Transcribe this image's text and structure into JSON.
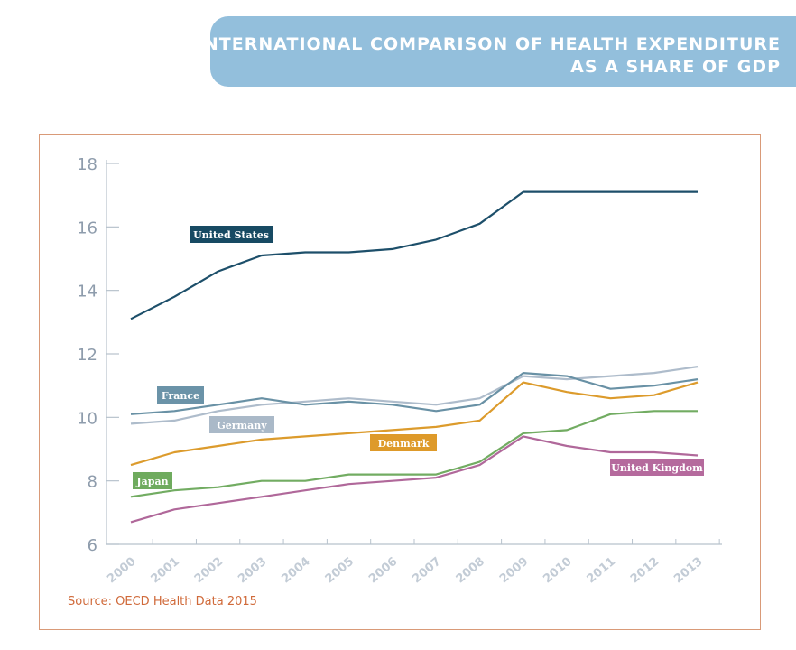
{
  "header": {
    "title_line1": "INTERNATIONAL COMPARISON OF HEALTH EXPENDITURE",
    "title_line2": "AS A SHARE OF GDP"
  },
  "source": "Source: OECD Health Data 2015",
  "chart_data": {
    "type": "line",
    "title": "INTERNATIONAL COMPARISON OF HEALTH EXPENDITURE AS A SHARE OF GDP",
    "x": [
      "2000",
      "2001",
      "2002",
      "2003",
      "2004",
      "2005",
      "2006",
      "2007",
      "2008",
      "2009",
      "2010",
      "2011",
      "2012",
      "2013"
    ],
    "ylim": [
      6,
      18
    ],
    "yticks": [
      6,
      8,
      10,
      12,
      14,
      16,
      18
    ],
    "grid": false,
    "series": [
      {
        "name": "United States",
        "color": "#1d4f6a",
        "label_color": "#174a63",
        "values": [
          13.1,
          13.8,
          14.6,
          15.1,
          15.2,
          15.2,
          15.3,
          15.6,
          16.1,
          17.1,
          17.1,
          17.1,
          17.1,
          17.1
        ]
      },
      {
        "name": "Germany",
        "color": "#aebccb",
        "label_color": "#aab9c8",
        "values": [
          9.8,
          9.9,
          10.2,
          10.4,
          10.5,
          10.6,
          10.5,
          10.4,
          10.6,
          11.3,
          11.2,
          11.3,
          11.4,
          11.6
        ]
      },
      {
        "name": "France",
        "color": "#6991a5",
        "label_color": "#6b93a8",
        "values": [
          10.1,
          10.2,
          10.4,
          10.6,
          10.4,
          10.5,
          10.4,
          10.2,
          10.4,
          11.4,
          11.3,
          10.9,
          11.0,
          11.2
        ]
      },
      {
        "name": "Denmark",
        "color": "#dc9b2c",
        "label_color": "#de9a2a",
        "values": [
          8.5,
          8.9,
          9.1,
          9.3,
          9.4,
          9.5,
          9.6,
          9.7,
          9.9,
          11.1,
          10.8,
          10.6,
          10.7,
          11.1
        ]
      },
      {
        "name": "Japan",
        "color": "#72ac62",
        "label_color": "#6fab5e",
        "values": [
          7.5,
          7.7,
          7.8,
          8.0,
          8.0,
          8.2,
          8.2,
          8.2,
          8.6,
          9.5,
          9.6,
          10.1,
          10.2,
          10.2
        ]
      },
      {
        "name": "United Kingdom",
        "color": "#b0689a",
        "label_color": "#b56a9d",
        "values": [
          6.7,
          7.1,
          7.3,
          7.5,
          7.7,
          7.9,
          8.0,
          8.1,
          8.5,
          9.4,
          9.1,
          8.9,
          8.9,
          8.8
        ]
      }
    ]
  }
}
